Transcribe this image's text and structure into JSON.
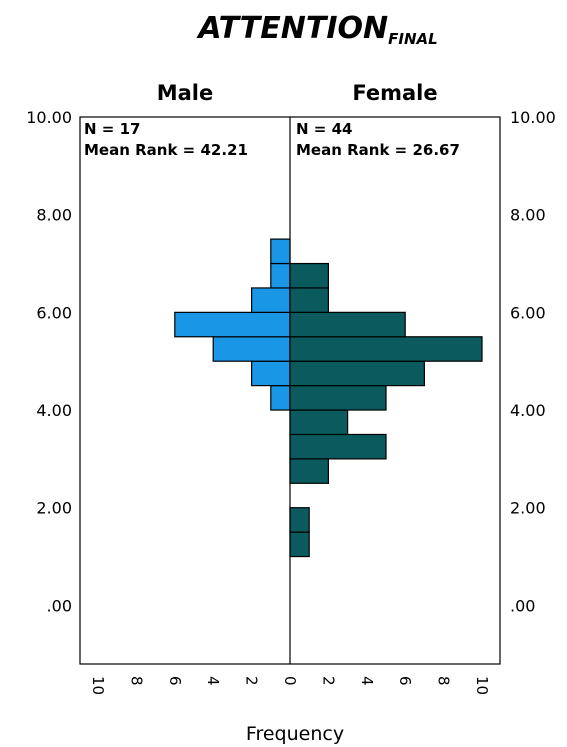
{
  "chart_data": {
    "type": "population-pyramid-histogram",
    "title_main": "ATTENTION",
    "title_sub": "FINAL",
    "xlabel": "Frequency",
    "left_group": {
      "name": "Male",
      "n_label": "N = 17",
      "mean_rank_label": "Mean Rank = 42.21",
      "color": "#1a96e6",
      "bins": [
        {
          "y0": 4.0,
          "y1": 4.5,
          "count": 1
        },
        {
          "y0": 4.5,
          "y1": 5.0,
          "count": 2
        },
        {
          "y0": 5.0,
          "y1": 5.5,
          "count": 4
        },
        {
          "y0": 5.5,
          "y1": 6.0,
          "count": 6
        },
        {
          "y0": 6.0,
          "y1": 6.5,
          "count": 2
        },
        {
          "y0": 6.5,
          "y1": 7.0,
          "count": 1
        },
        {
          "y0": 7.0,
          "y1": 7.5,
          "count": 1
        }
      ]
    },
    "right_group": {
      "name": "Female",
      "n_label": "N = 44",
      "mean_rank_label": "Mean Rank = 26.67",
      "color": "#0a5a5e",
      "bins": [
        {
          "y0": 1.0,
          "y1": 1.5,
          "count": 1
        },
        {
          "y0": 1.5,
          "y1": 2.0,
          "count": 1
        },
        {
          "y0": 2.5,
          "y1": 3.0,
          "count": 2
        },
        {
          "y0": 3.0,
          "y1": 3.5,
          "count": 5
        },
        {
          "y0": 3.5,
          "y1": 4.0,
          "count": 3
        },
        {
          "y0": 4.0,
          "y1": 4.5,
          "count": 5
        },
        {
          "y0": 4.5,
          "y1": 5.0,
          "count": 7
        },
        {
          "y0": 5.0,
          "y1": 5.5,
          "count": 10
        },
        {
          "y0": 5.5,
          "y1": 6.0,
          "count": 6
        },
        {
          "y0": 6.0,
          "y1": 6.5,
          "count": 2
        },
        {
          "y0": 6.5,
          "y1": 7.0,
          "count": 2
        }
      ]
    },
    "y_ticks": [
      {
        "value": 0,
        "label": ".00"
      },
      {
        "value": 2,
        "label": "2.00"
      },
      {
        "value": 4,
        "label": "4.00"
      },
      {
        "value": 6,
        "label": "6.00"
      },
      {
        "value": 8,
        "label": "8.00"
      },
      {
        "value": 10,
        "label": "10.00"
      }
    ],
    "ylim": [
      -1.2,
      10.0
    ],
    "x_ticks": [
      {
        "value": 10,
        "label": "10"
      },
      {
        "value": 8,
        "label": "8"
      },
      {
        "value": 6,
        "label": "6"
      },
      {
        "value": 4,
        "label": "4"
      },
      {
        "value": 2,
        "label": "2"
      },
      {
        "value": 0,
        "label": "0"
      }
    ],
    "xlim": [
      0,
      10
    ]
  }
}
